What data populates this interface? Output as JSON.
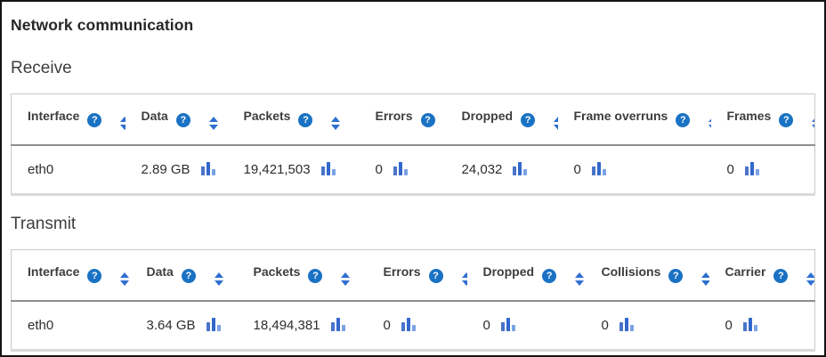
{
  "page": {
    "title": "Network communication"
  },
  "colors": {
    "accent_blue": "#1a72c4",
    "sort_arrow_blue": "#2e6fd0",
    "chart_bar_blue": "#3268cc",
    "chart_bar_light_blue": "#7ba2e4",
    "header_separator": "#8f8f8f",
    "table_border": "#c9c9c9"
  },
  "icons": {
    "help_glyph": "?",
    "help_name": "help-icon",
    "sort_name": "sort-arrows-icon",
    "chart_name": "bar-chart-icon"
  },
  "sections": [
    {
      "heading": "Receive",
      "columns": [
        "Interface",
        "Data",
        "Packets",
        "Errors",
        "Dropped",
        "Frame overruns",
        "Frames"
      ],
      "rows": [
        [
          "eth0",
          "2.89 GB",
          "19,421,503",
          "0",
          "24,032",
          "0",
          "0"
        ]
      ]
    },
    {
      "heading": "Transmit",
      "columns": [
        "Interface",
        "Data",
        "Packets",
        "Errors",
        "Dropped",
        "Collisions",
        "Carrier"
      ],
      "rows": [
        [
          "eth0",
          "3.64 GB",
          "18,494,381",
          "0",
          "0",
          "0",
          "0"
        ]
      ]
    }
  ]
}
